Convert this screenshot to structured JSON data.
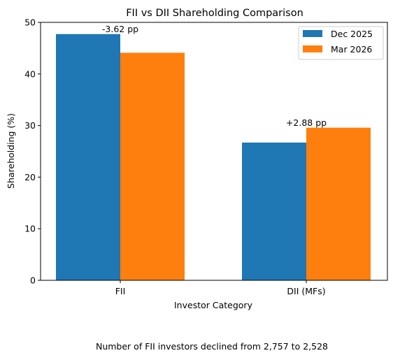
{
  "chart_data": {
    "type": "bar",
    "title": "FII vs DII Shareholding Comparison",
    "xlabel": "Investor Category",
    "ylabel": "Shareholding (%)",
    "categories": [
      "FII",
      "DII (MFs)"
    ],
    "series": [
      {
        "name": "Dec 2025",
        "color": "#1f77b4",
        "values": [
          47.73,
          26.7
        ]
      },
      {
        "name": "Mar 2026",
        "color": "#ff7f0e",
        "values": [
          44.11,
          29.58
        ]
      }
    ],
    "ylim": [
      0,
      50
    ],
    "yticks": [
      "0",
      "10",
      "20",
      "30",
      "40",
      "50"
    ],
    "legend_position": "top-right",
    "grid": false,
    "annotations": [
      "-3.62 pp",
      "+2.88 pp"
    ],
    "footnote": "Number of FII investors declined from 2,757 to 2,528"
  }
}
